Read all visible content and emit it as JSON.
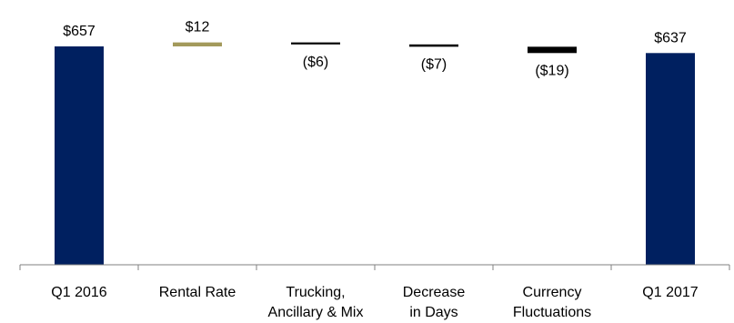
{
  "chart_data": {
    "type": "waterfall",
    "title": "",
    "xlabel": "",
    "ylabel": "",
    "ylim": [
      0,
      700
    ],
    "grid": false,
    "legend": "none",
    "categories": [
      [
        "Q1 2016"
      ],
      [
        "Rental Rate"
      ],
      [
        "Trucking,",
        "Ancillary & Mix"
      ],
      [
        "Decrease",
        "in Days"
      ],
      [
        "Currency",
        "Fluctuations"
      ],
      [
        "Q1 2017"
      ]
    ],
    "steps": [
      {
        "kind": "total",
        "value": 657,
        "label": "$657"
      },
      {
        "kind": "delta",
        "value": 12,
        "label": "$12"
      },
      {
        "kind": "delta",
        "value": -6,
        "label": "($6)"
      },
      {
        "kind": "delta",
        "value": -7,
        "label": "($7)"
      },
      {
        "kind": "delta",
        "value": -19,
        "label": "($19)"
      },
      {
        "kind": "total",
        "value": 637,
        "label": "$637"
      }
    ],
    "colors": {
      "total": "#002060",
      "increase": "#a39a5b",
      "decrease": "#000000",
      "axis": "#808080"
    }
  }
}
